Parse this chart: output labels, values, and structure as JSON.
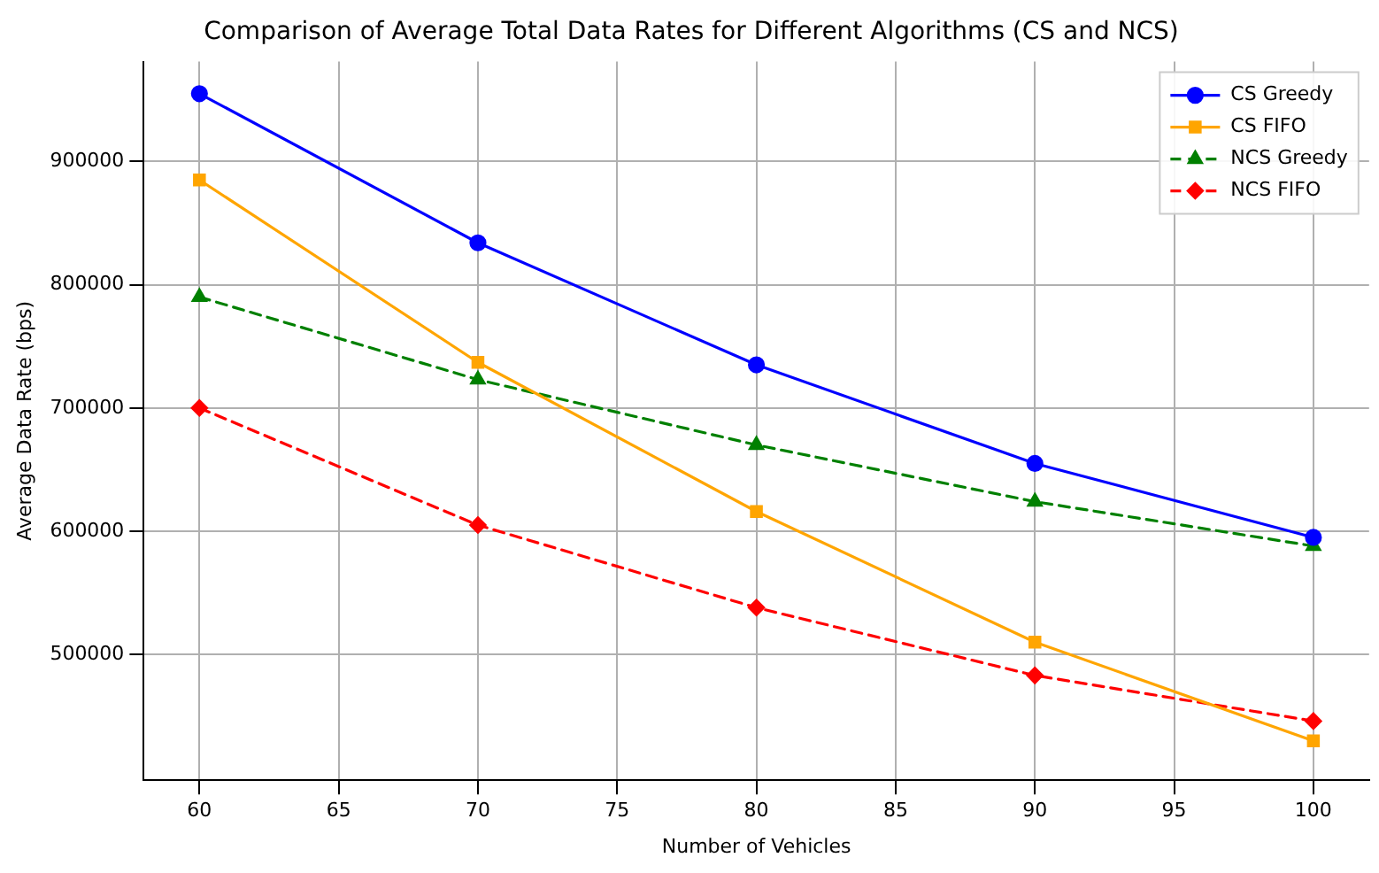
{
  "chart_data": {
    "type": "line",
    "title": "Comparison of Average Total Data Rates for Different Algorithms (CS and NCS)",
    "xlabel": "Number of Vehicles",
    "ylabel": "Average Data Rate (bps)",
    "x": [
      60,
      70,
      80,
      90,
      100
    ],
    "series": [
      {
        "name": "CS Greedy",
        "color": "#0000ff",
        "marker": "circle",
        "line_style": "solid",
        "values": [
          955000,
          834000,
          735000,
          655000,
          595000
        ]
      },
      {
        "name": "CS FIFO",
        "color": "#ffa500",
        "marker": "square",
        "line_style": "solid",
        "values": [
          885000,
          737000,
          616000,
          510000,
          430000
        ]
      },
      {
        "name": "NCS Greedy",
        "color": "#008000",
        "marker": "triangle",
        "line_style": "dashed",
        "values": [
          790000,
          723000,
          670000,
          624000,
          588000
        ]
      },
      {
        "name": "NCS FIFO",
        "color": "#ff0000",
        "marker": "diamond",
        "line_style": "dashed",
        "values": [
          700000,
          605000,
          538000,
          483000,
          446000
        ]
      }
    ],
    "xlim": [
      58,
      102
    ],
    "xticks": [
      60,
      65,
      70,
      75,
      80,
      85,
      90,
      95,
      100
    ],
    "ylim": [
      398000,
      981000
    ],
    "yticks": [
      500000,
      600000,
      700000,
      800000,
      900000
    ],
    "grid": true,
    "legend": "top right"
  }
}
